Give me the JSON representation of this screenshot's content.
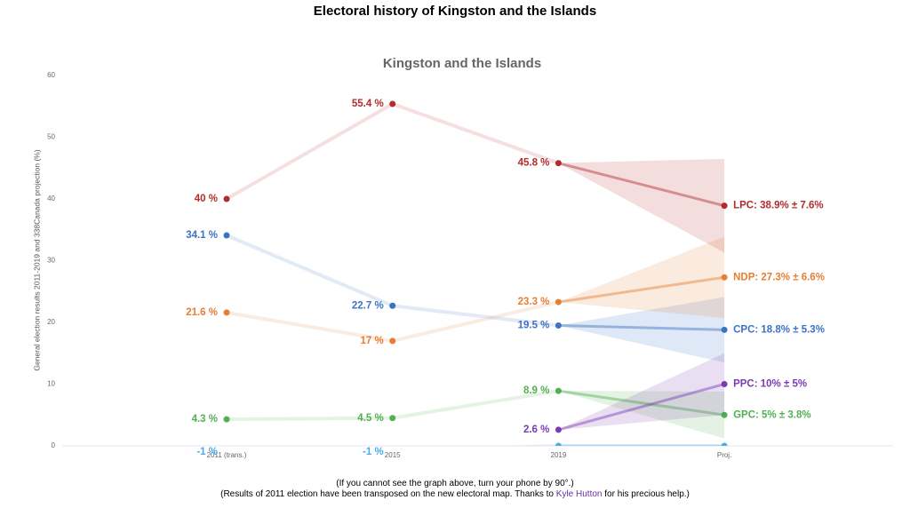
{
  "page_title": "Electoral history of Kingston and the Islands",
  "chart_data": {
    "type": "line",
    "title": "Kingston and the Islands",
    "y_label": "General election results 2011-2019 and 338Canada projection (%)",
    "categories": [
      "2011 (trans.)",
      "2015",
      "2019",
      "Proj."
    ],
    "ylim": [
      0,
      60
    ],
    "yticks": [
      0,
      10,
      20,
      30,
      40,
      50,
      60
    ],
    "grid": false,
    "series": [
      {
        "name": "LPC",
        "color": "#b22c2c",
        "values": [
          40,
          55.4,
          45.8,
          38.9
        ],
        "errors": [
          null,
          null,
          null,
          7.6
        ],
        "value_labels": [
          "40 %",
          "55.4 %",
          "45.8 %",
          "LPC: 38.9% ± 7.6%"
        ]
      },
      {
        "name": "CPC",
        "color": "#3b73c4",
        "values": [
          34.1,
          22.7,
          19.5,
          18.8
        ],
        "errors": [
          null,
          null,
          null,
          5.3
        ],
        "value_labels": [
          "34.1 %",
          "22.7 %",
          "19.5 %",
          "CPC: 18.8% ± 5.3%"
        ]
      },
      {
        "name": "NDP",
        "color": "#e67e33",
        "values": [
          21.6,
          17,
          23.3,
          27.3
        ],
        "errors": [
          null,
          null,
          null,
          6.6
        ],
        "value_labels": [
          "21.6 %",
          "17 %",
          "23.3 %",
          "NDP: 27.3% ± 6.6%"
        ]
      },
      {
        "name": "GPC",
        "color": "#52b052",
        "values": [
          4.3,
          4.5,
          8.9,
          5
        ],
        "errors": [
          null,
          null,
          null,
          3.8
        ],
        "value_labels": [
          "4.3 %",
          "4.5 %",
          "8.9 %",
          "GPC: 5% ± 3.8%"
        ]
      },
      {
        "name": "PPC",
        "color": "#7b3ab0",
        "values": [
          null,
          null,
          2.6,
          10
        ],
        "errors": [
          null,
          null,
          null,
          5
        ],
        "value_labels": [
          null,
          null,
          "2.6 %",
          "PPC: 10% ± 5%"
        ]
      },
      {
        "color": "#4aaee6",
        "values": [
          -1,
          -1,
          0,
          0
        ],
        "value_labels": [
          "-1 %",
          "-1 %",
          null,
          null
        ]
      }
    ]
  },
  "footer": {
    "note": "(If you cannot see the graph above, turn your phone by 90°.)",
    "credit_before": "(Results of 2011 election have been transposed on the new electoral map. Thanks to ",
    "credit_link": "Kyle Hutton",
    "credit_after": " for his precious help.)"
  }
}
